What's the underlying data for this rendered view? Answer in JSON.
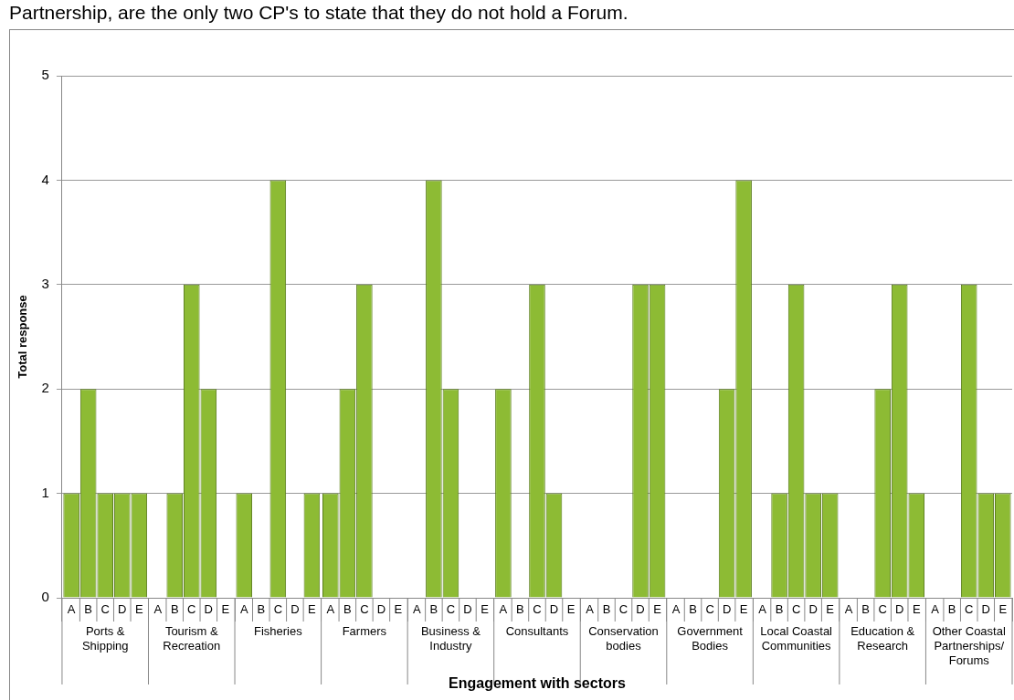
{
  "chart_data": {
    "type": "bar",
    "xlabel": "Engagement with sectors",
    "ylabel": "Total response",
    "categories": [
      "Ports & Shipping",
      "Tourism & Recreation",
      "Fisheries",
      "Farmers",
      "Business & Industry",
      "Consultants",
      "Conservation bodies",
      "Government Bodies",
      "Local Coastal Communities",
      "Education & Research",
      "Other Coastal Partnerships/ Forums"
    ],
    "series": [
      {
        "name": "A",
        "color": "#8dbb34",
        "values": [
          1,
          0,
          1,
          1,
          0,
          2,
          0,
          0,
          0,
          0,
          0
        ]
      },
      {
        "name": "B",
        "color": "#8dbb34",
        "values": [
          2,
          1,
          0,
          2,
          4,
          0,
          0,
          0,
          1,
          0,
          0
        ]
      },
      {
        "name": "C",
        "color": "#8dbb34",
        "values": [
          1,
          3,
          4,
          3,
          2,
          3,
          0,
          0,
          3,
          2,
          3
        ]
      },
      {
        "name": "D",
        "color": "#8dbb34",
        "values": [
          1,
          2,
          0,
          0,
          0,
          1,
          3,
          2,
          1,
          3,
          1
        ]
      },
      {
        "name": "E",
        "color": "#8dbb34",
        "values": [
          1,
          0,
          1,
          0,
          0,
          0,
          3,
          4,
          1,
          1,
          1
        ]
      }
    ],
    "ylim": [
      0,
      5
    ],
    "yticks": [
      0,
      1,
      2,
      3,
      4,
      5
    ],
    "grid": "y",
    "legend": false,
    "annotations": [
      "Partnership, are the only two CP's to state that they do not hold a Forum."
    ]
  }
}
